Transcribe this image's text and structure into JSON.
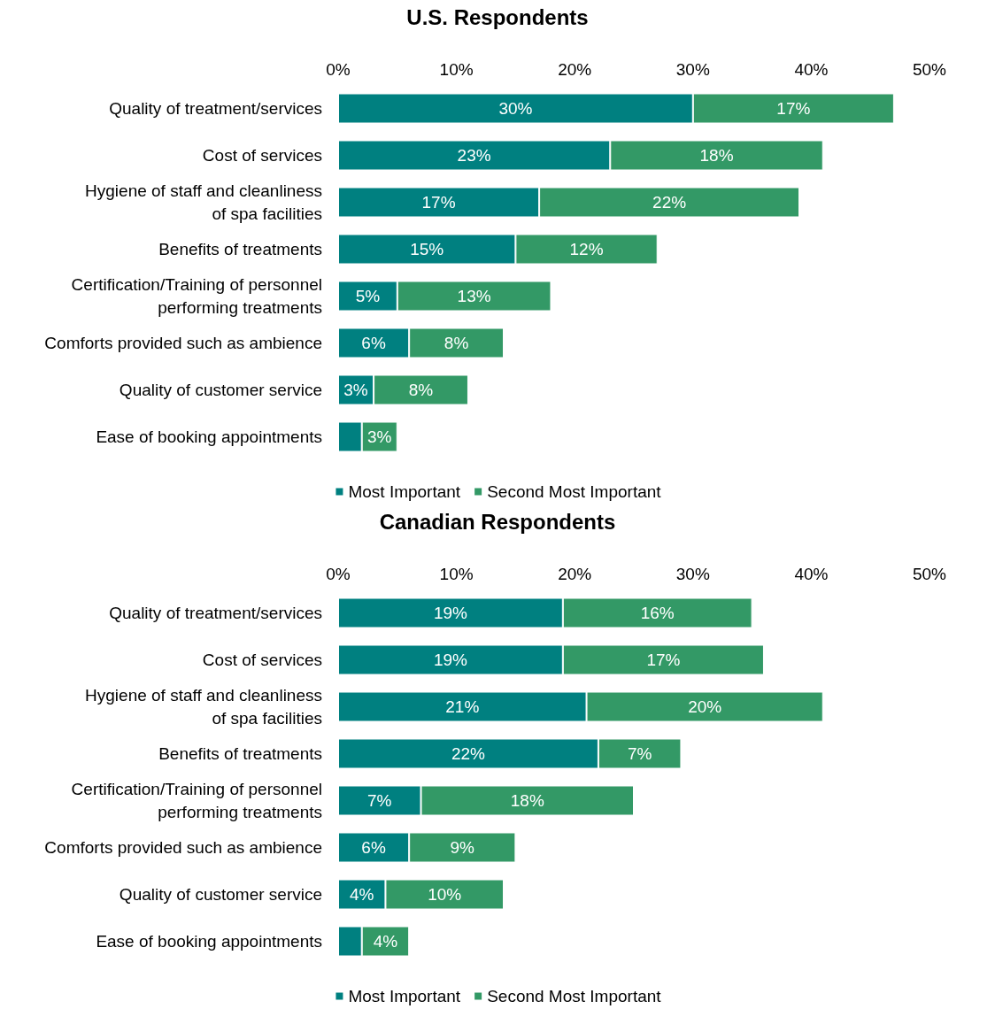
{
  "chart_data": [
    {
      "type": "bar",
      "orientation": "horizontal",
      "stacked": true,
      "title": "U.S. Respondents",
      "categories": [
        "Quality of treatment/services",
        "Cost of services",
        "Hygiene of staff and cleanliness\nof spa facilities",
        "Benefits of treatments",
        "Certification/Training of personnel\nperforming treatments",
        "Comforts provided such as ambience",
        "Quality of customer service",
        "Ease of booking appointments"
      ],
      "series": [
        {
          "name": "Most Important",
          "color": "#008080",
          "values": [
            30,
            23,
            17,
            15,
            5,
            6,
            3,
            2
          ],
          "value_labels": [
            "30%",
            "23%",
            "17%",
            "15%",
            "5%",
            "6%",
            "3%",
            null
          ]
        },
        {
          "name": "Second Most Important",
          "color": "#339966",
          "values": [
            17,
            18,
            22,
            12,
            13,
            8,
            8,
            3
          ],
          "value_labels": [
            "17%",
            "18%",
            "22%",
            "12%",
            "13%",
            "8%",
            "8%",
            "3%"
          ]
        }
      ],
      "xlim": [
        0,
        50
      ],
      "xticks": [
        {
          "value": 0,
          "label": "0%"
        },
        {
          "value": 10,
          "label": "10%"
        },
        {
          "value": 20,
          "label": "20%"
        },
        {
          "value": 30,
          "label": "30%"
        },
        {
          "value": 40,
          "label": "40%"
        },
        {
          "value": 50,
          "label": "50%"
        }
      ],
      "grid": false,
      "legend": "bottom"
    },
    {
      "type": "bar",
      "orientation": "horizontal",
      "stacked": true,
      "title": "Canadian Respondents",
      "categories": [
        "Quality of treatment/services",
        "Cost of services",
        "Hygiene of staff and cleanliness\nof spa facilities",
        "Benefits of treatments",
        "Certification/Training of personnel\nperforming treatments",
        "Comforts provided such as ambience",
        "Quality of customer service",
        "Ease of booking appointments"
      ],
      "series": [
        {
          "name": "Most Important",
          "color": "#008080",
          "values": [
            19,
            19,
            21,
            22,
            7,
            6,
            4,
            2
          ],
          "value_labels": [
            "19%",
            "19%",
            "21%",
            "22%",
            "7%",
            "6%",
            "4%",
            null
          ]
        },
        {
          "name": "Second Most Important",
          "color": "#339966",
          "values": [
            16,
            17,
            20,
            7,
            18,
            9,
            10,
            4
          ],
          "value_labels": [
            "16%",
            "17%",
            "20%",
            "7%",
            "18%",
            "9%",
            "10%",
            "4%"
          ]
        }
      ],
      "xlim": [
        0,
        50
      ],
      "xticks": [
        {
          "value": 0,
          "label": "0%"
        },
        {
          "value": 10,
          "label": "10%"
        },
        {
          "value": 20,
          "label": "20%"
        },
        {
          "value": 30,
          "label": "30%"
        },
        {
          "value": 40,
          "label": "40%"
        },
        {
          "value": 50,
          "label": "50%"
        }
      ],
      "grid": false,
      "legend": "bottom"
    }
  ]
}
